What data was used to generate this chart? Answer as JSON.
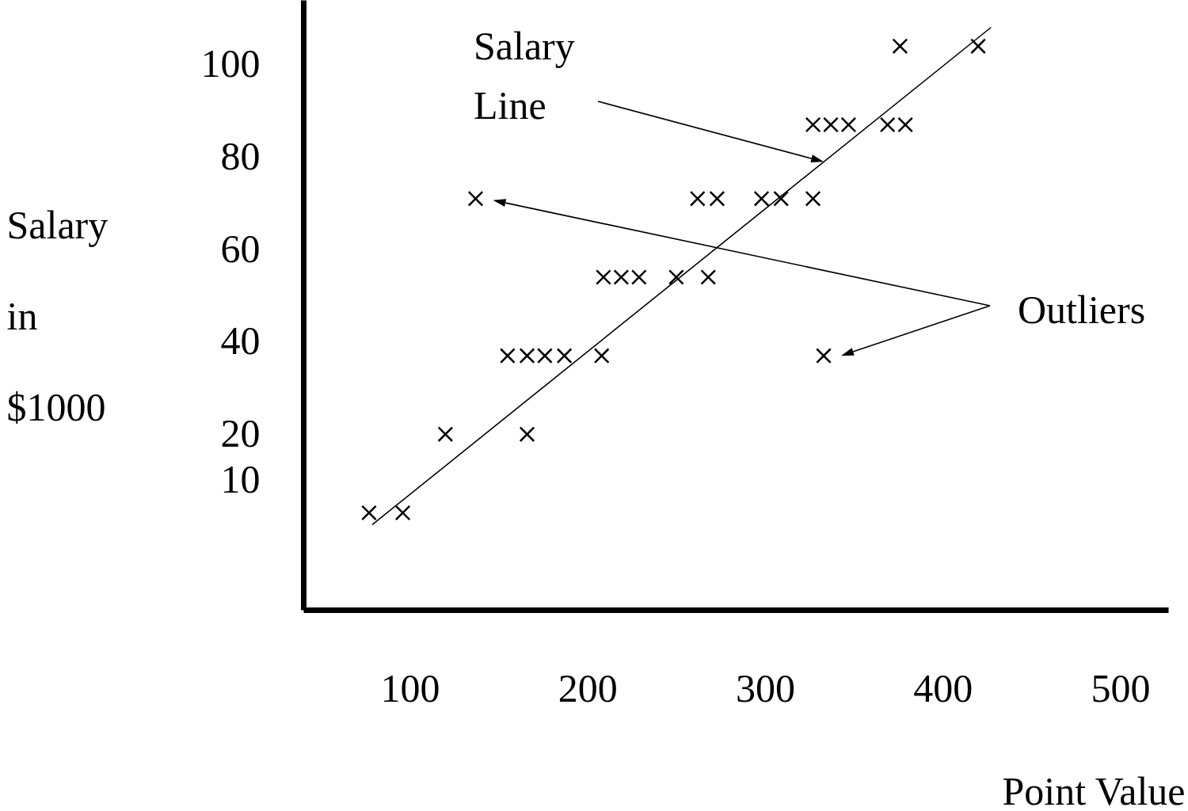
{
  "chart_data": {
    "type": "scatter",
    "xlabel": "Point Value",
    "ylabel": "Salary in $1000",
    "marker": "cross",
    "xlim": [
      40,
      527
    ],
    "ylim": [
      -18,
      114
    ],
    "xticks": [
      100,
      200,
      300,
      400,
      500
    ],
    "yticks": [
      10,
      20,
      40,
      60,
      80,
      100
    ],
    "series": [
      {
        "color": "#000000",
        "x": [
          376,
          420,
          327,
          337,
          347,
          369,
          379,
          262,
          273,
          298,
          309,
          327,
          209,
          219,
          229,
          250,
          268,
          155,
          166,
          176,
          187,
          208,
          120,
          166,
          77,
          96
        ],
        "values": [
          104,
          104,
          87,
          87,
          87,
          87,
          87,
          71,
          71,
          71,
          71,
          71,
          54,
          54,
          54,
          54,
          54,
          37,
          37,
          37,
          37,
          37,
          20,
          20,
          3,
          3
        ]
      },
      {
        "color": "#000000",
        "x": [
          137,
          333
        ],
        "values": [
          71,
          37
        ]
      },
      {
        "type": "line",
        "marker": "none",
        "color": "#000000",
        "x": [
          79,
          427
        ],
        "values": [
          0.5,
          108
        ]
      }
    ],
    "annotations": [
      "Salary Line",
      "Outliers"
    ]
  }
}
